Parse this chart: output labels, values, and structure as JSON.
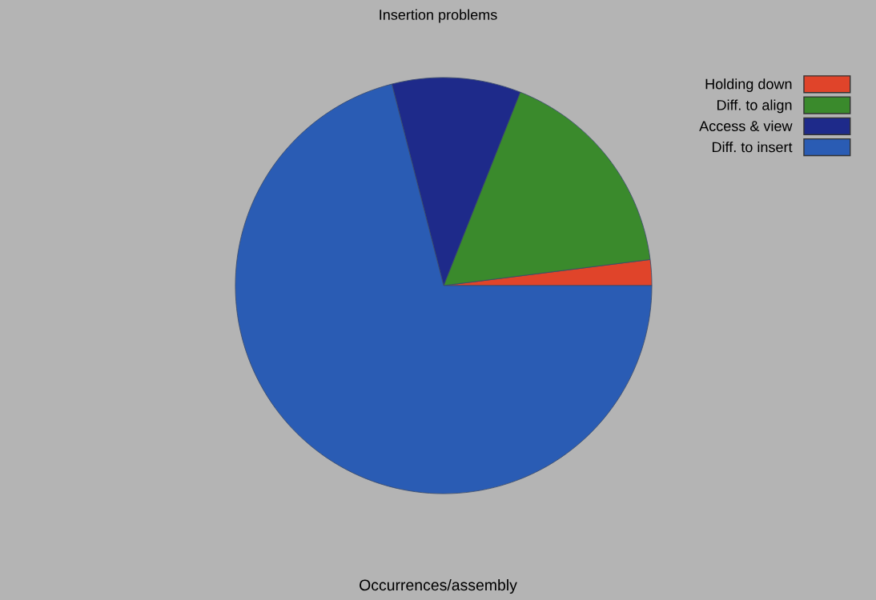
{
  "chart_data": {
    "type": "pie",
    "title": "Insertion problems",
    "xlabel": "Occurrences/assembly",
    "categories": [
      "Holding down",
      "Diff. to align",
      "Access & view",
      "Diff. to insert"
    ],
    "values": [
      2,
      17,
      10,
      71
    ],
    "colors": [
      "#e0442a",
      "#3a8a2c",
      "#1e2a8a",
      "#2a5cb4"
    ],
    "legend": "top right"
  }
}
